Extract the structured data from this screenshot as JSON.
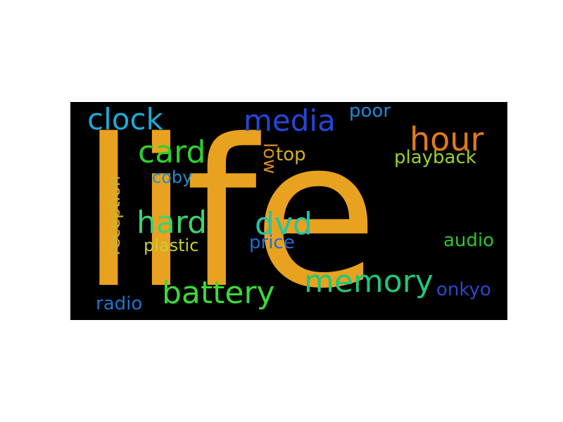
{
  "word_cloud": {
    "background": "#000000",
    "words": [
      {
        "text": "life",
        "color": "#e9a21f"
      },
      {
        "text": "clock",
        "color": "#1fa9d6"
      },
      {
        "text": "media",
        "color": "#2446d8"
      },
      {
        "text": "poor",
        "color": "#1f8ad6"
      },
      {
        "text": "hour",
        "color": "#e07b1a"
      },
      {
        "text": "card",
        "color": "#2ed12e"
      },
      {
        "text": "low",
        "color": "#d98b1c"
      },
      {
        "text": "top",
        "color": "#d4b21f"
      },
      {
        "text": "playback",
        "color": "#9bd22a"
      },
      {
        "text": "coby",
        "color": "#1e8fd0"
      },
      {
        "text": "reception",
        "color": "#c9b52a"
      },
      {
        "text": "hard",
        "color": "#3ed16f"
      },
      {
        "text": "dvd",
        "color": "#23c4a8"
      },
      {
        "text": "plastic",
        "color": "#c8d030"
      },
      {
        "text": "price",
        "color": "#1f6ed8"
      },
      {
        "text": "audio",
        "color": "#2ec42e"
      },
      {
        "text": "memory",
        "color": "#1fc77b"
      },
      {
        "text": "battery",
        "color": "#3ad93a"
      },
      {
        "text": "onkyo",
        "color": "#2a48cc"
      },
      {
        "text": "radio",
        "color": "#1f74cc"
      }
    ]
  }
}
